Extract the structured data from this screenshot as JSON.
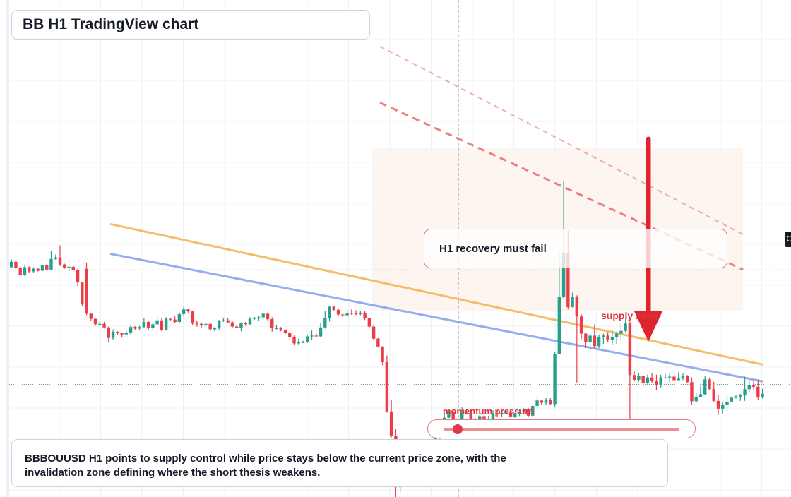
{
  "title": "BB H1 TradingView chart",
  "annotations": {
    "callout": "H1 recovery must fail",
    "supply_label": "supply zone",
    "momentum_label": "momentum pressure",
    "note": "BBBOUUSD H1 points to supply control while price stays below the current price zone, with the invalidation zone defining where the short thesis weakens."
  },
  "momentum_level": 0.06,
  "colors": {
    "bull": "#26a08a",
    "bear": "#eb3d4a",
    "ma_fast": "#f6b55a",
    "ma_slow": "#8aa4ef",
    "resistance": "#e86a6e",
    "arrow": "#e0242d",
    "supply_zone": "#fdf3ec"
  },
  "chart_data": {
    "type": "candlestick",
    "timeframe": "H1",
    "candles": [
      [
        -1.32,
        -1.18,
        -1.12,
        -1.33
      ],
      [
        -1.18,
        -1.34,
        -1.15,
        -1.36
      ],
      [
        -1.34,
        -1.51,
        -1.3,
        -1.54
      ],
      [
        -1.51,
        -1.32,
        -1.28,
        -1.54
      ],
      [
        -1.32,
        -1.43,
        -1.3,
        -1.46
      ],
      [
        -1.43,
        -1.36,
        -1.32,
        -1.47
      ],
      [
        -1.36,
        -1.41,
        -1.34,
        -1.43
      ],
      [
        -1.41,
        -1.27,
        -1.26,
        -1.42
      ],
      [
        -1.27,
        -1.38,
        -1.24,
        -1.4
      ],
      [
        -1.38,
        -1.11,
        -0.9,
        -1.39
      ],
      [
        -1.11,
        -1.07,
        -1.0,
        -1.13
      ],
      [
        -1.07,
        -1.25,
        -0.76,
        -1.29
      ],
      [
        -1.25,
        -1.34,
        -1.23,
        -1.36
      ],
      [
        -1.34,
        -1.31,
        -1.25,
        -1.42
      ],
      [
        -1.31,
        -1.4,
        -1.28,
        -1.41
      ],
      [
        -1.4,
        -1.71,
        -1.35,
        -1.8
      ],
      [
        -1.71,
        -2.25,
        -1.7,
        -2.32
      ],
      [
        -1.36,
        -2.51,
        -1.2,
        -2.55
      ],
      [
        -2.51,
        -2.64,
        -2.49,
        -2.7
      ],
      [
        -2.64,
        -2.78,
        -2.62,
        -2.82
      ],
      [
        -2.78,
        -2.77,
        -2.7,
        -2.8
      ],
      [
        -2.77,
        -2.86,
        -2.72,
        -2.89
      ],
      [
        -2.86,
        -3.13,
        -2.84,
        -3.25
      ],
      [
        -3.13,
        -2.97,
        -2.91,
        -3.19
      ],
      [
        -2.97,
        -3.01,
        -2.96,
        -3.06
      ],
      [
        -3.01,
        -3.04,
        -3.0,
        -3.12
      ],
      [
        -3.04,
        -2.99,
        -2.96,
        -3.06
      ],
      [
        -2.99,
        -2.85,
        -2.79,
        -3.05
      ],
      [
        -2.85,
        -2.89,
        -2.83,
        -2.93
      ],
      [
        -2.89,
        -2.85,
        -2.82,
        -2.92
      ],
      [
        -2.85,
        -2.72,
        -2.62,
        -2.87
      ],
      [
        -2.72,
        -2.88,
        -2.68,
        -2.92
      ],
      [
        -2.88,
        -2.78,
        -2.73,
        -2.93
      ],
      [
        -2.78,
        -2.68,
        -2.62,
        -2.81
      ],
      [
        -2.68,
        -2.92,
        -2.63,
        -2.96
      ],
      [
        -2.92,
        -2.64,
        -2.6,
        -2.94
      ],
      [
        -2.64,
        -2.66,
        -2.62,
        -2.7
      ],
      [
        -2.66,
        -2.72,
        -2.58,
        -2.75
      ],
      [
        -2.72,
        -2.52,
        -2.47,
        -2.74
      ],
      [
        -2.52,
        -2.4,
        -2.34,
        -2.56
      ],
      [
        -2.4,
        -2.45,
        -2.39,
        -2.48
      ],
      [
        -2.45,
        -2.76,
        -2.43,
        -2.79
      ],
      [
        -2.76,
        -2.77,
        -2.7,
        -2.84
      ],
      [
        -2.77,
        -2.81,
        -2.73,
        -2.86
      ],
      [
        -2.81,
        -2.77,
        -2.73,
        -2.85
      ],
      [
        -2.77,
        -2.91,
        -2.75,
        -2.95
      ],
      [
        -2.91,
        -2.87,
        -2.85,
        -2.96
      ],
      [
        -2.87,
        -2.69,
        -2.67,
        -2.92
      ],
      [
        -2.69,
        -2.68,
        -2.63,
        -2.72
      ],
      [
        -2.68,
        -2.73,
        -2.63,
        -2.75
      ],
      [
        -2.73,
        -2.84,
        -2.7,
        -2.88
      ],
      [
        -2.84,
        -2.88,
        -2.81,
        -2.89
      ],
      [
        -2.88,
        -2.74,
        -2.73,
        -2.96
      ],
      [
        -2.74,
        -2.78,
        -2.72,
        -2.82
      ],
      [
        -2.78,
        -2.64,
        -2.6,
        -2.81
      ],
      [
        -2.64,
        -2.62,
        -2.59,
        -2.67
      ],
      [
        -2.62,
        -2.6,
        -2.56,
        -2.69
      ],
      [
        -2.6,
        -2.51,
        -2.49,
        -2.64
      ],
      [
        -2.51,
        -2.65,
        -2.48,
        -2.69
      ],
      [
        -2.65,
        -2.88,
        -2.6,
        -2.97
      ],
      [
        -2.88,
        -2.88,
        -2.81,
        -2.91
      ],
      [
        -2.88,
        -2.93,
        -2.85,
        -2.96
      ],
      [
        -2.93,
        -3.01,
        -2.91,
        -3.03
      ],
      [
        -3.01,
        -3.11,
        -2.98,
        -3.17
      ],
      [
        -3.11,
        -3.27,
        -3.07,
        -3.3
      ],
      [
        -3.27,
        -3.24,
        -3.15,
        -3.31
      ],
      [
        -3.24,
        -3.24,
        -3.2,
        -3.25
      ],
      [
        -3.24,
        -3.09,
        -3.05,
        -3.26
      ],
      [
        -3.09,
        -3.07,
        -2.94,
        -3.18
      ],
      [
        -3.07,
        -3.09,
        -2.99,
        -3.11
      ],
      [
        -3.09,
        -2.86,
        -2.75,
        -3.11
      ],
      [
        -2.86,
        -2.63,
        -2.43,
        -2.89
      ],
      [
        -2.63,
        -2.33,
        -2.31,
        -2.71
      ],
      [
        -2.33,
        -2.41,
        -2.31,
        -2.43
      ],
      [
        -2.41,
        -2.53,
        -2.37,
        -2.56
      ],
      [
        -2.53,
        -2.55,
        -2.5,
        -2.61
      ],
      [
        -2.55,
        -2.49,
        -2.4,
        -2.59
      ],
      [
        -2.49,
        -2.5,
        -2.4,
        -2.54
      ],
      [
        -2.5,
        -2.52,
        -2.42,
        -2.55
      ],
      [
        -2.52,
        -2.49,
        -2.45,
        -2.55
      ],
      [
        -2.49,
        -2.63,
        -2.44,
        -2.67
      ],
      [
        -2.63,
        -2.84,
        -2.61,
        -2.88
      ],
      [
        -2.84,
        -3.15,
        -2.79,
        -3.17
      ],
      [
        -3.15,
        -3.35,
        -3.13,
        -3.37
      ],
      [
        -3.35,
        -3.75,
        -3.34,
        -3.83
      ],
      [
        -3.75,
        -5.01,
        -3.58,
        -5.04
      ],
      [
        -5.01,
        -5.63,
        -4.72,
        -5.68
      ],
      [
        -5.63,
        -6.95,
        -5.45,
        -7.23
      ],
      [
        -6.95,
        -6.67,
        -6.41,
        -7.09
      ],
      [
        -6.67,
        -6.65,
        -6.5,
        -6.72
      ],
      [
        -6.65,
        -6.27,
        -6.22,
        -6.71
      ],
      [
        -6.27,
        -6.04,
        -5.95,
        -6.27
      ],
      [
        -6.04,
        -6.1,
        -5.99,
        -6.26
      ],
      [
        -6.1,
        -6.19,
        -6.07,
        -6.28
      ],
      [
        -6.19,
        -6.0,
        -5.98,
        -6.25
      ],
      [
        -6.0,
        -5.79,
        -5.73,
        -6.09
      ],
      [
        -5.79,
        -5.67,
        -5.62,
        -5.82
      ],
      [
        -5.67,
        -5.58,
        -5.34,
        -5.77
      ],
      [
        -5.58,
        -5.17,
        -5.06,
        -5.61
      ],
      [
        -5.17,
        -5.02,
        -4.99,
        -5.18
      ],
      [
        -5.02,
        -5.23,
        -4.94,
        -5.33
      ],
      [
        -5.23,
        -5.33,
        -5.19,
        -5.38
      ],
      [
        -5.33,
        -5.04,
        -4.9,
        -5.36
      ],
      [
        -5.04,
        -5.06,
        -4.95,
        -5.09
      ],
      [
        -5.06,
        -5.24,
        -4.95,
        -5.32
      ],
      [
        -5.24,
        -5.37,
        -5.18,
        -5.45
      ],
      [
        -5.37,
        -5.13,
        -5.1,
        -5.41
      ],
      [
        -5.13,
        -5.3,
        -5.1,
        -5.32
      ],
      [
        -5.3,
        -5.28,
        -5.12,
        -5.34
      ],
      [
        -5.28,
        -5.06,
        -4.98,
        -5.34
      ],
      [
        -5.06,
        -5.07,
        -4.98,
        -5.16
      ],
      [
        -5.07,
        -5.05,
        -4.99,
        -5.14
      ],
      [
        -5.05,
        -5.04,
        -4.95,
        -5.09
      ],
      [
        -5.04,
        -5.14,
        -4.95,
        -5.16
      ],
      [
        -5.14,
        -5.06,
        -5.04,
        -5.17
      ],
      [
        -5.06,
        -5.02,
        -4.96,
        -5.13
      ],
      [
        -5.02,
        -4.96,
        -4.93,
        -5.07
      ],
      [
        -4.96,
        -5.12,
        -4.92,
        -5.15
      ],
      [
        -5.12,
        -4.87,
        -4.84,
        -5.15
      ],
      [
        -4.87,
        -4.73,
        -4.63,
        -4.92
      ],
      [
        -4.73,
        -4.79,
        -4.72,
        -4.84
      ],
      [
        -4.79,
        -4.72,
        -4.67,
        -4.85
      ],
      [
        -4.72,
        -4.82,
        -4.67,
        -4.84
      ],
      [
        -4.82,
        -3.54,
        -3.48,
        -4.89
      ],
      [
        -3.54,
        -2.07,
        -0.96,
        -3.55
      ],
      [
        -2.07,
        -0.95,
        0.87,
        -2.13
      ],
      [
        -0.95,
        -2.34,
        -0.38,
        -2.4
      ],
      [
        -2.34,
        -2.07,
        -1.97,
        -2.35
      ],
      [
        -2.07,
        -2.58,
        -2.04,
        -4.27
      ],
      [
        -2.58,
        -3.02,
        -2.52,
        -3.16
      ],
      [
        -3.02,
        -3.23,
        -3.01,
        -3.39
      ],
      [
        -3.23,
        -3.07,
        -3.02,
        -3.43
      ],
      [
        -3.07,
        -3.34,
        -2.78,
        -3.4
      ],
      [
        -3.34,
        -3.11,
        -3.04,
        -3.39
      ],
      [
        -3.11,
        -3.07,
        -3.02,
        -3.28
      ],
      [
        -3.07,
        -3.18,
        -2.98,
        -3.24
      ],
      [
        -3.18,
        -3.11,
        -2.94,
        -3.3
      ],
      [
        -3.11,
        -3.02,
        -2.97,
        -3.28
      ],
      [
        -3.02,
        -2.95,
        -2.74,
        -3.19
      ],
      [
        -2.95,
        -2.76,
        -2.64,
        -2.98
      ],
      [
        -2.76,
        -4.08,
        -2.71,
        -5.48
      ],
      [
        -4.08,
        -4.2,
        -3.97,
        -4.22
      ],
      [
        -4.2,
        -4.11,
        -4.02,
        -4.25
      ],
      [
        -4.11,
        -4.29,
        -4.09,
        -4.37
      ],
      [
        -4.29,
        -4.14,
        -4.07,
        -4.34
      ],
      [
        -4.14,
        -4.22,
        -4.04,
        -4.28
      ],
      [
        -4.22,
        -4.33,
        -4.07,
        -4.47
      ],
      [
        -4.33,
        -4.14,
        -4.07,
        -4.42
      ],
      [
        -4.14,
        -4.14,
        -4.05,
        -4.17
      ],
      [
        -4.14,
        -4.12,
        -4.05,
        -4.27
      ],
      [
        -4.12,
        -4.21,
        -4.04,
        -4.31
      ],
      [
        -4.21,
        -4.17,
        -4.01,
        -4.19
      ],
      [
        -4.17,
        -4.1,
        -4.04,
        -4.21
      ],
      [
        -4.1,
        -4.26,
        -4.08,
        -4.28
      ],
      [
        -4.26,
        -4.75,
        -4.14,
        -4.83
      ],
      [
        -4.75,
        -4.65,
        -4.54,
        -4.79
      ],
      [
        -4.65,
        -4.57,
        -4.36,
        -4.64
      ],
      [
        -4.57,
        -4.19,
        -4.11,
        -4.59
      ],
      [
        -4.19,
        -4.44,
        -4.14,
        -4.46
      ],
      [
        -4.44,
        -4.74,
        -4.25,
        -4.78
      ],
      [
        -4.74,
        -4.94,
        -4.6,
        -5.1
      ],
      [
        -4.94,
        -4.84,
        -4.77,
        -5.06
      ],
      [
        -4.84,
        -4.76,
        -4.61,
        -5.0
      ],
      [
        -4.76,
        -4.66,
        -4.63,
        -4.77
      ],
      [
        -4.66,
        -4.63,
        -4.58,
        -4.68
      ],
      [
        -4.63,
        -4.6,
        -4.56,
        -4.74
      ],
      [
        -4.6,
        -4.44,
        -4.12,
        -4.74
      ],
      [
        -4.44,
        -4.33,
        -4.21,
        -4.51
      ],
      [
        -4.33,
        -4.38,
        -4.24,
        -4.45
      ],
      [
        -4.38,
        -4.65,
        -4.2,
        -4.72
      ],
      [
        -4.65,
        -4.56,
        -4.43,
        -4.68
      ]
    ],
    "moving_averages": [
      {
        "color": "#f6b55a",
        "from": -0.22,
        "to": -3.81
      },
      {
        "color": "#8aa4ef",
        "from": -0.98,
        "to": -4.24
      }
    ],
    "resistance_lines": [
      {
        "from": 2.89,
        "to": -1.38
      },
      {
        "from": 4.33,
        "to": -0.48
      }
    ],
    "current_price": -4.32,
    "crosshair_price": -1.39,
    "ylim": [
      -7.2,
      5.3
    ]
  }
}
